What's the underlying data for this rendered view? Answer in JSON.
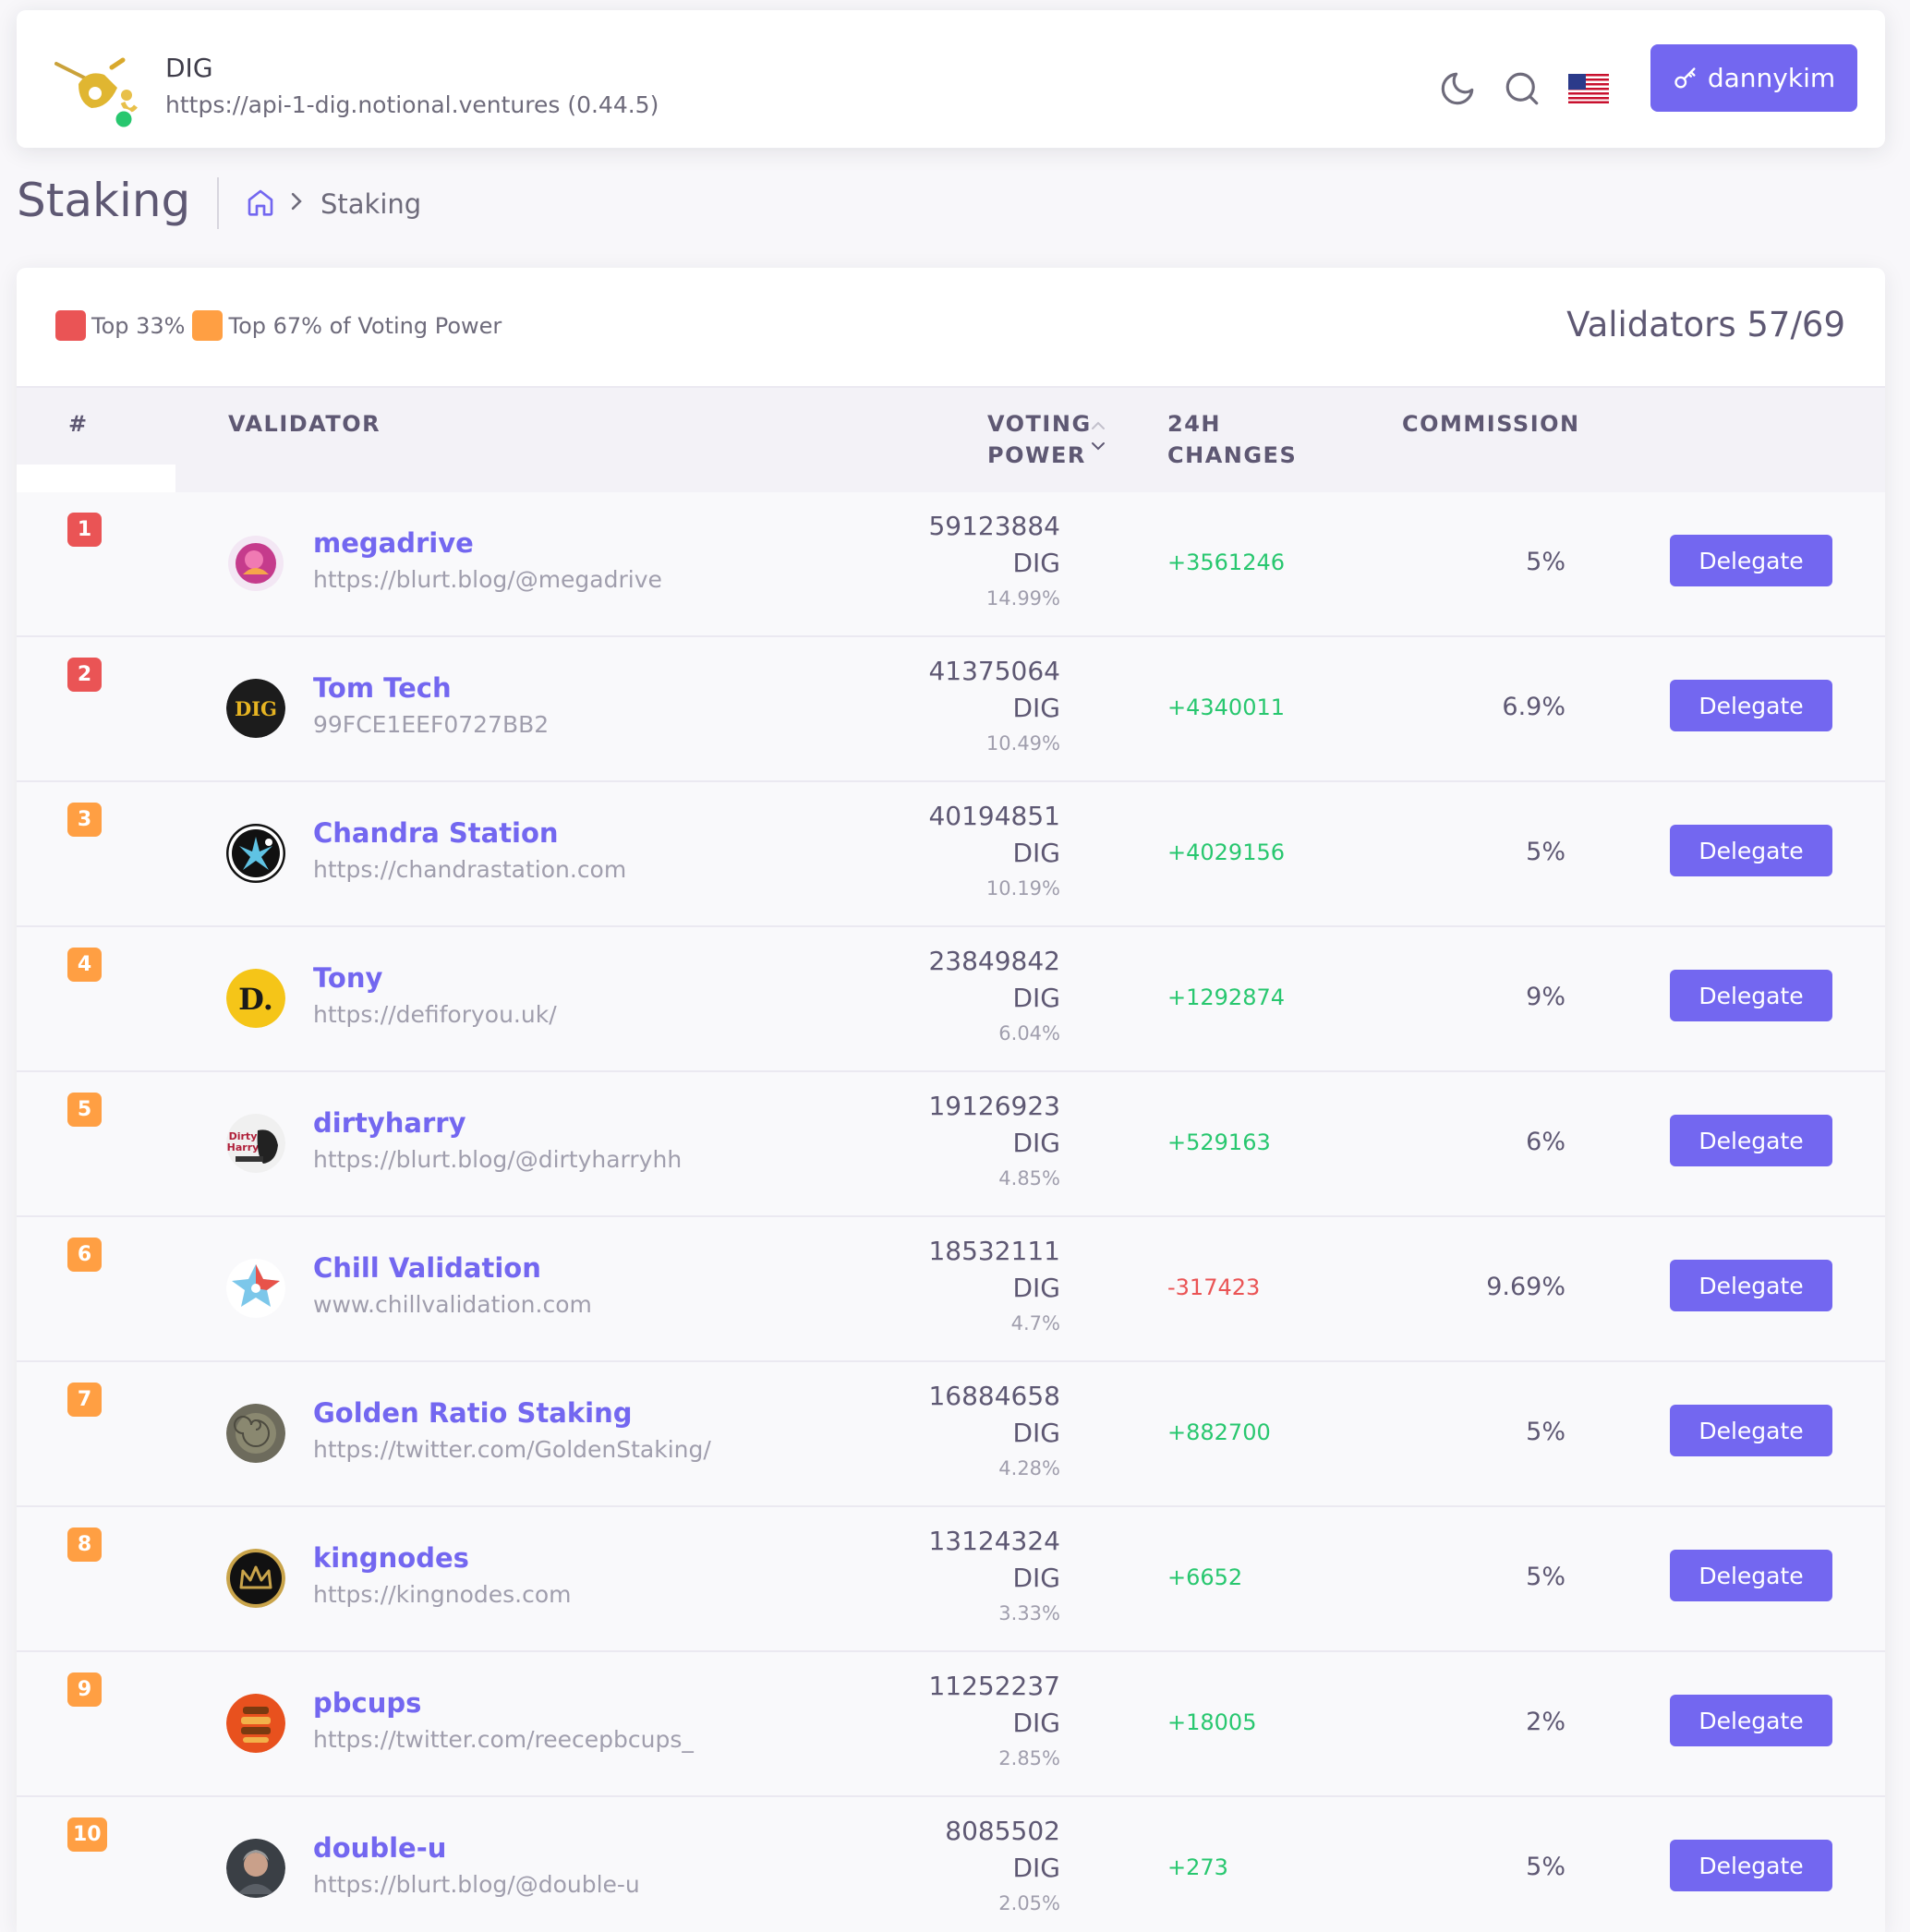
{
  "navbar": {
    "chain_name": "DIG",
    "endpoint": "https://api-1-dig.notional.ventures (0.44.5)",
    "wallet_label": "dannykim",
    "icons": [
      "dig-logo-icon",
      "moon-icon",
      "search-icon",
      "us-flag-icon",
      "key-icon"
    ]
  },
  "page": {
    "title": "Staking",
    "breadcrumb_current": "Staking"
  },
  "legend": {
    "top33": "Top 33%",
    "top67": "Top 67% of Voting Power"
  },
  "validators_count": "Validators 57/69",
  "table": {
    "headers": {
      "rank": "#",
      "validator": "VALIDATOR",
      "voting_power_1": "VOTING",
      "voting_power_2": "POWER",
      "changes_1": "24H",
      "changes_2": "CHANGES",
      "commission": "COMMISSION"
    },
    "rows": [
      {
        "rank": "1",
        "name": "megadrive",
        "site": "https://blurt.blog/@megadrive",
        "amount": "59123884",
        "denom": "DIG",
        "pct": "14.99%",
        "change": "+3561246",
        "commission": "5%",
        "action": "Delegate"
      },
      {
        "rank": "2",
        "name": "Tom Tech",
        "site": "99FCE1EEF0727BB2",
        "amount": "41375064",
        "denom": "DIG",
        "pct": "10.49%",
        "change": "+4340011",
        "commission": "6.9%",
        "action": "Delegate"
      },
      {
        "rank": "3",
        "name": "Chandra Station",
        "site": "https://chandrastation.com",
        "amount": "40194851",
        "denom": "DIG",
        "pct": "10.19%",
        "change": "+4029156",
        "commission": "5%",
        "action": "Delegate"
      },
      {
        "rank": "4",
        "name": "Tony",
        "site": "https://defiforyou.uk/",
        "amount": "23849842",
        "denom": "DIG",
        "pct": "6.04%",
        "change": "+1292874",
        "commission": "9%",
        "action": "Delegate"
      },
      {
        "rank": "5",
        "name": "dirtyharry",
        "site": "https://blurt.blog/@dirtyharryhh",
        "amount": "19126923",
        "denom": "DIG",
        "pct": "4.85%",
        "change": "+529163",
        "commission": "6%",
        "action": "Delegate"
      },
      {
        "rank": "6",
        "name": "Chill Validation",
        "site": "www.chillvalidation.com",
        "amount": "18532111",
        "denom": "DIG",
        "pct": "4.7%",
        "change": "-317423",
        "commission": "9.69%",
        "action": "Delegate"
      },
      {
        "rank": "7",
        "name": "Golden Ratio Staking",
        "site": "https://twitter.com/GoldenStaking/",
        "amount": "16884658",
        "denom": "DIG",
        "pct": "4.28%",
        "change": "+882700",
        "commission": "5%",
        "action": "Delegate"
      },
      {
        "rank": "8",
        "name": "kingnodes",
        "site": "https://kingnodes.com",
        "amount": "13124324",
        "denom": "DIG",
        "pct": "3.33%",
        "change": "+6652",
        "commission": "5%",
        "action": "Delegate"
      },
      {
        "rank": "9",
        "name": "pbcups",
        "site": "https://twitter.com/reecepbcups_",
        "amount": "11252237",
        "denom": "DIG",
        "pct": "2.85%",
        "change": "+18005",
        "commission": "2%",
        "action": "Delegate"
      },
      {
        "rank": "10",
        "name": "double-u",
        "site": "https://blurt.blog/@double-u",
        "amount": "8085502",
        "denom": "DIG",
        "pct": "2.05%",
        "change": "+273",
        "commission": "5%",
        "action": "Delegate"
      }
    ]
  },
  "avatar_texts": {
    "tomtech": "DIG",
    "tony": "D.",
    "dirtyharry_1": "Dirty",
    "dirtyharry_2": "Harry"
  },
  "colors": {
    "primary": "#7367f0",
    "top33": "#ea5455",
    "top67": "#ff9f43",
    "positive": "#28c76f",
    "negative": "#ea5455"
  }
}
